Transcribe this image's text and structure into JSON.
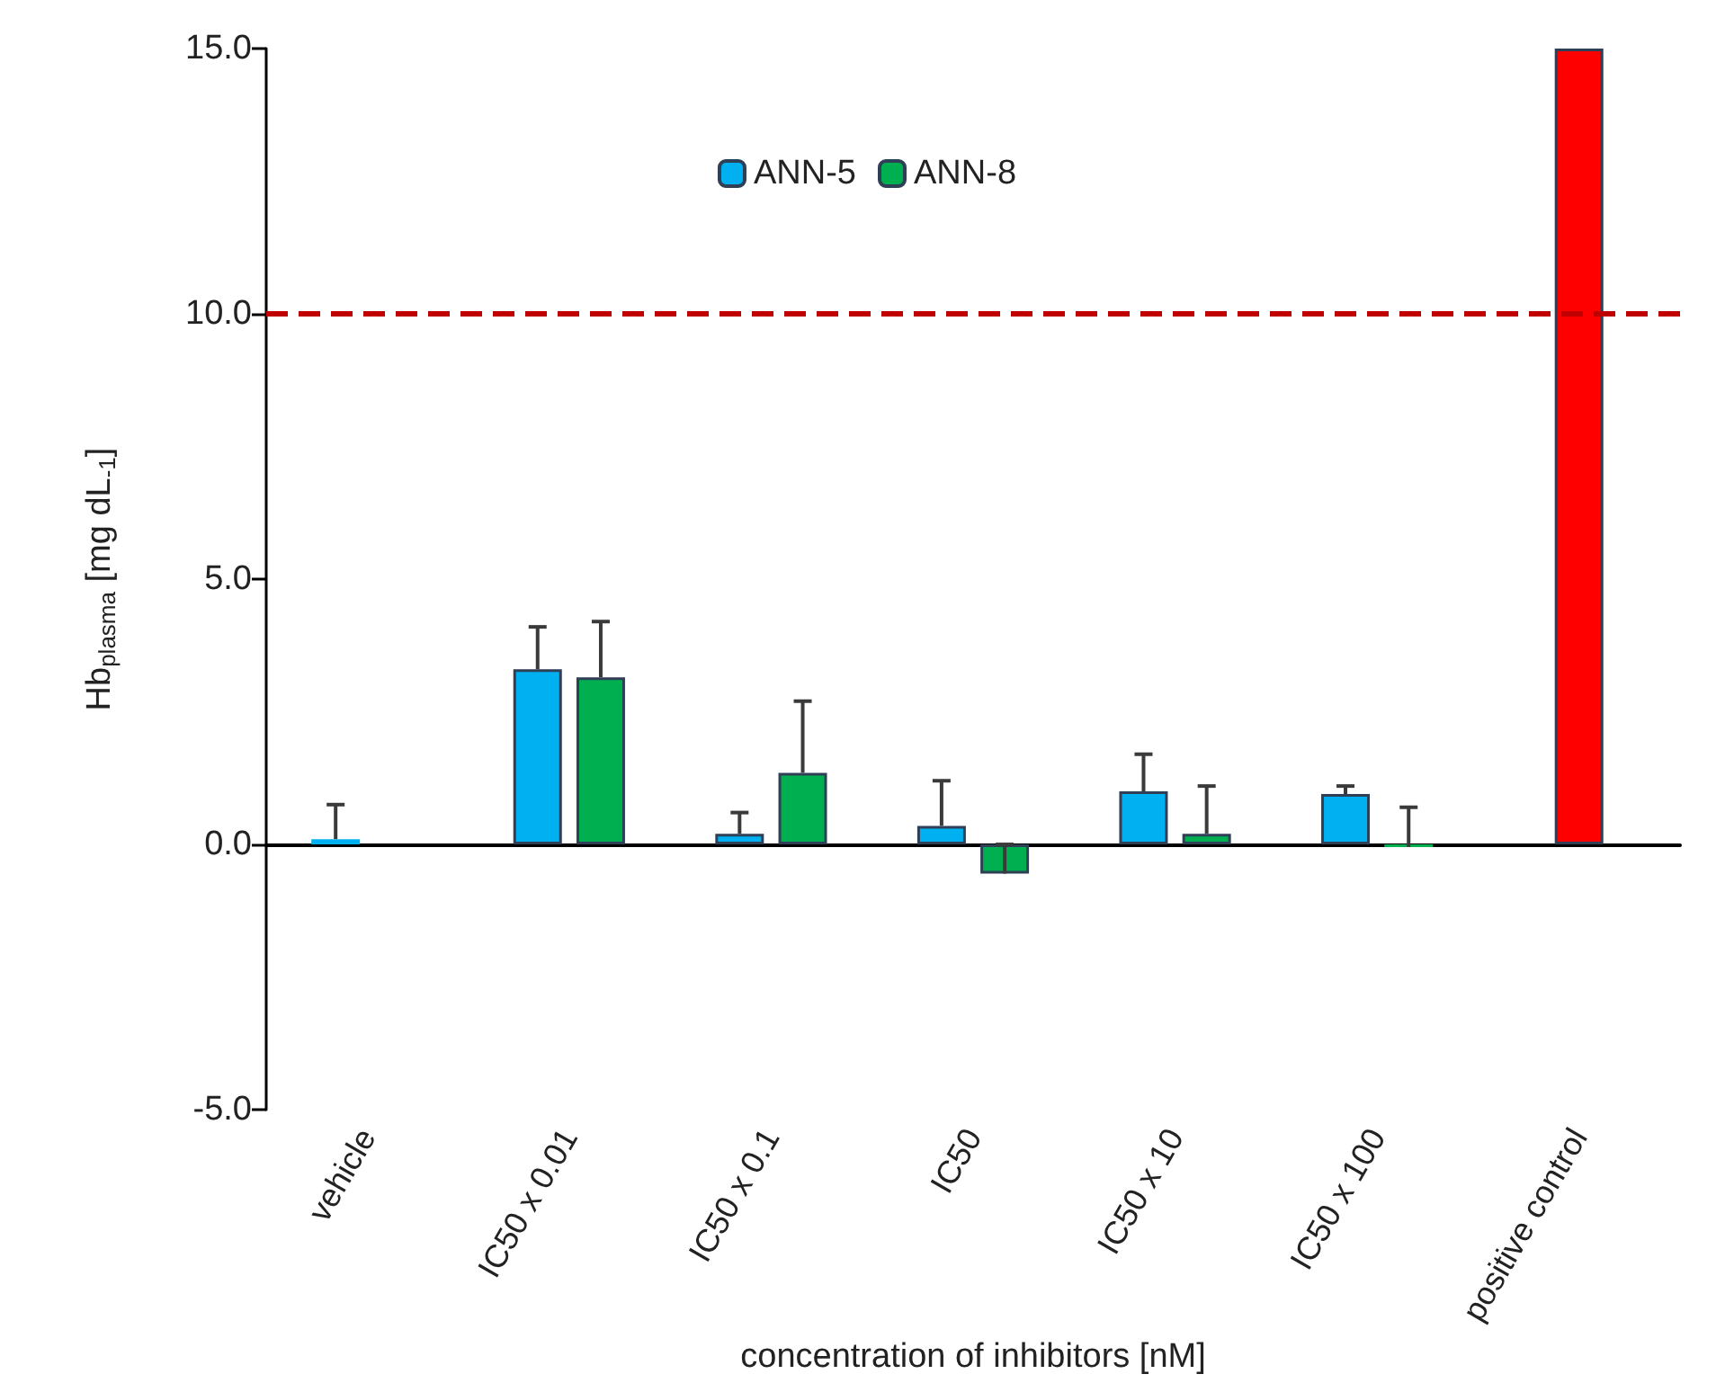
{
  "chart_data": {
    "type": "bar",
    "xlabel": "concentration of inhibitors [nM]",
    "ylabel": "Hb$_{plasma}$ [mg dL$_{-1}$]",
    "categories": [
      "vehicle",
      "IC50 x 0.01",
      "IC50 x 0.1",
      "IC50",
      "IC50 x 10",
      "IC50 x 100",
      "positive control"
    ],
    "series": [
      {
        "name": "ANN-5",
        "color": "#00b0f0",
        "values": [
          0.1,
          3.3,
          0.2,
          0.35,
          1.0,
          0.95,
          null
        ],
        "errors": [
          [
            0.1,
            0.75
          ],
          [
            3.3,
            4.1
          ],
          [
            0.2,
            0.6
          ],
          [
            0.35,
            1.2
          ],
          [
            1.0,
            1.7
          ],
          [
            0.95,
            1.1
          ],
          null
        ]
      },
      {
        "name": "ANN-8",
        "color": "#00b050",
        "values": [
          null,
          3.15,
          1.35,
          -0.55,
          0.2,
          -0.05,
          null
        ],
        "errors": [
          null,
          [
            3.15,
            4.2
          ],
          [
            1.35,
            2.7
          ],
          [
            -0.55,
            0.0
          ],
          [
            0.2,
            1.1
          ],
          [
            -0.05,
            0.7
          ],
          null
        ]
      },
      {
        "color": "#ff0000",
        "values": [
          null,
          null,
          null,
          null,
          null,
          null,
          15
        ]
      }
    ],
    "ylim": [
      -5,
      15
    ],
    "yticks": [
      {
        "value": -5,
        "label": "-5.0"
      },
      {
        "value": 0,
        "label": "0.0"
      },
      {
        "value": 5,
        "label": "5.0"
      },
      {
        "value": 10,
        "label": "10.0"
      },
      {
        "value": 15,
        "label": "15.0"
      }
    ],
    "ref_lines": [
      {
        "axis": "y",
        "value": 10,
        "color": "#c00000",
        "line_style": "dashed"
      }
    ],
    "grid": false,
    "legend": "top"
  }
}
